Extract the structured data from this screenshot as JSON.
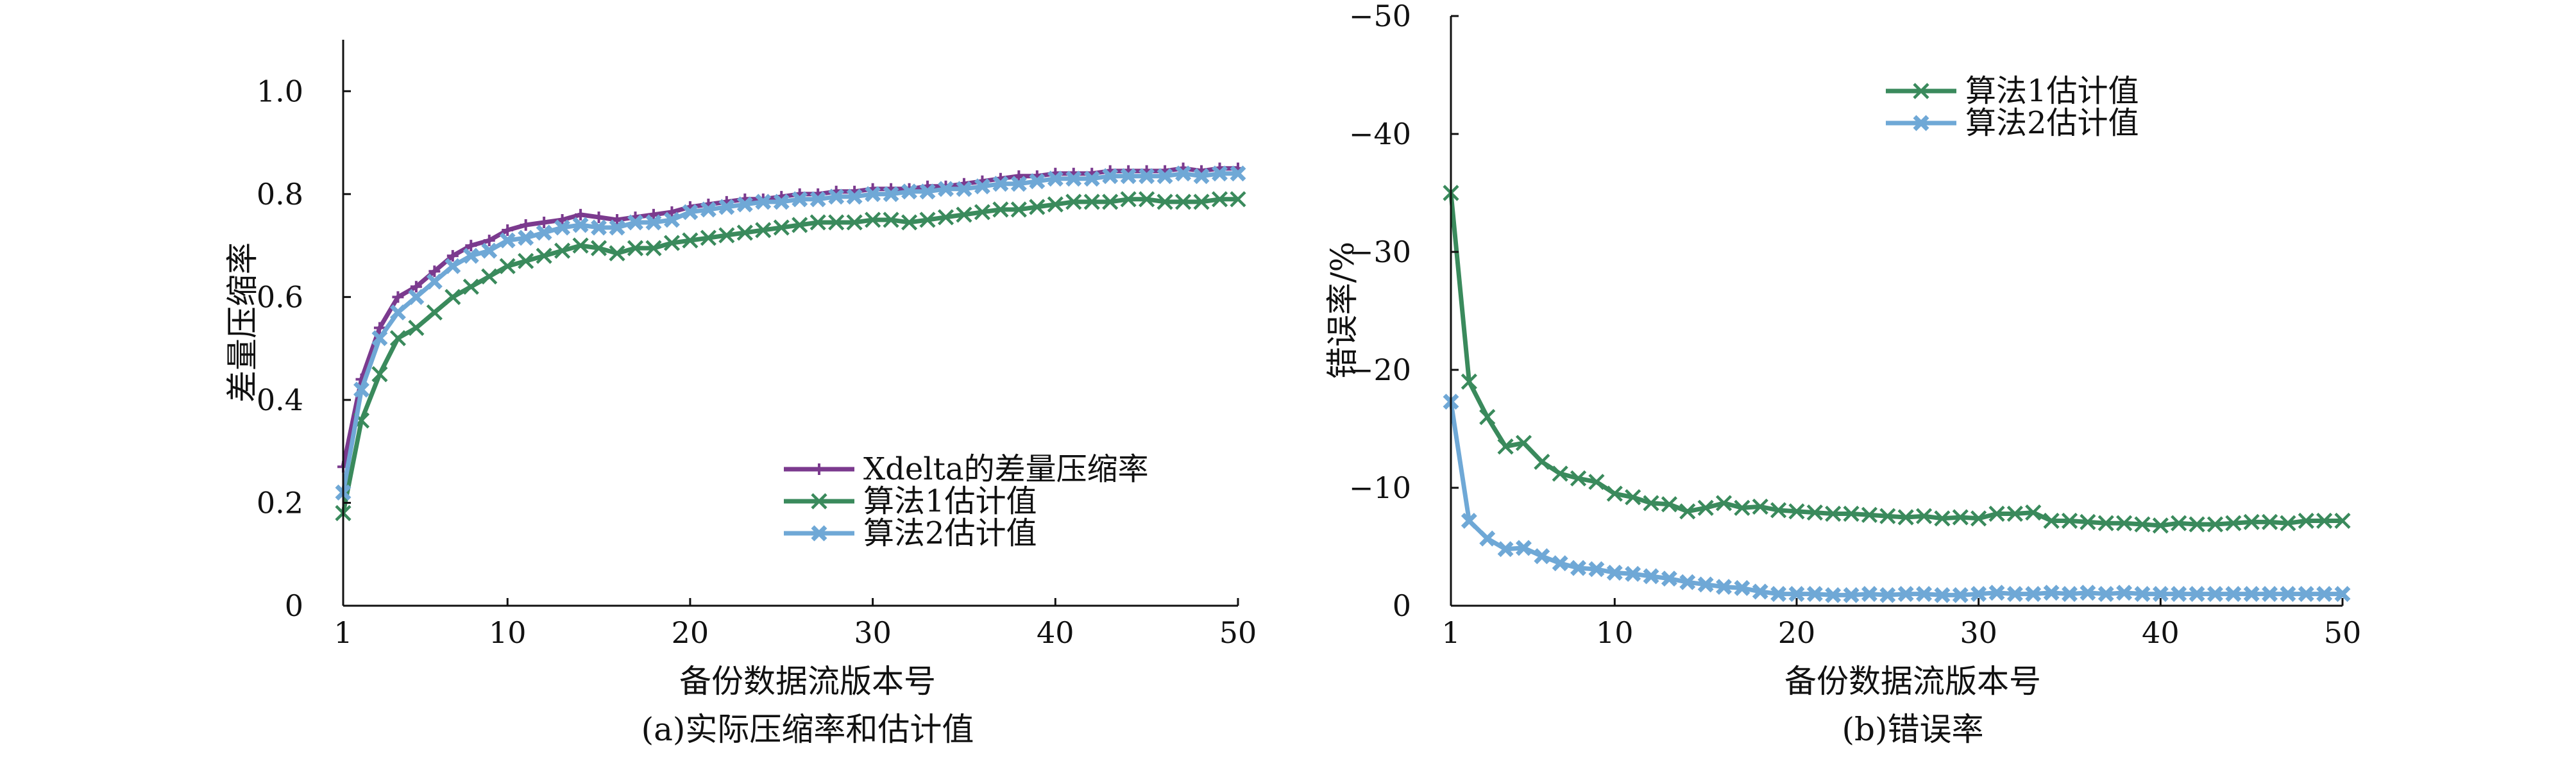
{
  "figure": {
    "panel_a_caption": "(a)实际压缩率和估计值",
    "panel_b_caption": "(b)错误率"
  },
  "chart_data": [
    {
      "type": "line",
      "title": "",
      "caption": "(a)实际压缩率和估计值",
      "xlabel": "备份数据流版本号",
      "ylabel": "差量压缩率",
      "xlim": [
        1,
        50
      ],
      "ylim": [
        0,
        1.1
      ],
      "xticks": [
        1,
        10,
        20,
        30,
        40,
        50
      ],
      "xtick_labels": [
        "1",
        "10",
        "20",
        "30",
        "40",
        "50"
      ],
      "yticks": [
        0,
        0.2,
        0.4,
        0.6,
        0.8,
        1.0
      ],
      "ytick_labels": [
        "0",
        "0.2",
        "0.4",
        "0.6",
        "0.8",
        "1.0"
      ],
      "grid": false,
      "legend_position": "bottom-right",
      "x": [
        1,
        2,
        3,
        4,
        5,
        6,
        7,
        8,
        9,
        10,
        11,
        12,
        13,
        14,
        15,
        16,
        17,
        18,
        19,
        20,
        21,
        22,
        23,
        24,
        25,
        26,
        27,
        28,
        29,
        30,
        31,
        32,
        33,
        34,
        35,
        36,
        37,
        38,
        39,
        40,
        41,
        42,
        43,
        44,
        45,
        46,
        47,
        48,
        49,
        50
      ],
      "series": [
        {
          "name": "Xdelta的差量压缩率",
          "color": "#7b3a8e",
          "marker": "plus",
          "values": [
            0.27,
            0.44,
            0.54,
            0.6,
            0.62,
            0.65,
            0.68,
            0.7,
            0.71,
            0.73,
            0.74,
            0.745,
            0.75,
            0.76,
            0.755,
            0.75,
            0.755,
            0.76,
            0.765,
            0.775,
            0.78,
            0.785,
            0.79,
            0.79,
            0.795,
            0.8,
            0.8,
            0.805,
            0.805,
            0.81,
            0.81,
            0.81,
            0.815,
            0.815,
            0.82,
            0.825,
            0.83,
            0.835,
            0.835,
            0.84,
            0.84,
            0.84,
            0.845,
            0.845,
            0.845,
            0.845,
            0.85,
            0.845,
            0.85,
            0.85
          ]
        },
        {
          "name": "算法1估计值",
          "color": "#3a8a5c",
          "marker": "x",
          "values": [
            0.18,
            0.36,
            0.45,
            0.52,
            0.54,
            0.57,
            0.6,
            0.62,
            0.64,
            0.66,
            0.67,
            0.68,
            0.69,
            0.7,
            0.695,
            0.685,
            0.695,
            0.695,
            0.705,
            0.71,
            0.715,
            0.72,
            0.725,
            0.73,
            0.735,
            0.74,
            0.745,
            0.745,
            0.745,
            0.75,
            0.75,
            0.745,
            0.75,
            0.755,
            0.76,
            0.765,
            0.77,
            0.77,
            0.775,
            0.78,
            0.785,
            0.785,
            0.785,
            0.79,
            0.79,
            0.785,
            0.785,
            0.785,
            0.79,
            0.79
          ]
        },
        {
          "name": "算法2估计值",
          "color": "#6fa8d6",
          "marker": "x-bold",
          "values": [
            0.22,
            0.42,
            0.52,
            0.57,
            0.6,
            0.63,
            0.66,
            0.68,
            0.69,
            0.71,
            0.715,
            0.725,
            0.735,
            0.74,
            0.735,
            0.735,
            0.745,
            0.745,
            0.75,
            0.765,
            0.77,
            0.775,
            0.78,
            0.785,
            0.785,
            0.79,
            0.79,
            0.795,
            0.795,
            0.8,
            0.8,
            0.805,
            0.805,
            0.81,
            0.81,
            0.815,
            0.82,
            0.82,
            0.825,
            0.83,
            0.83,
            0.83,
            0.835,
            0.835,
            0.835,
            0.835,
            0.84,
            0.835,
            0.84,
            0.84
          ]
        }
      ]
    },
    {
      "type": "line",
      "title": "",
      "caption": "(b)错误率",
      "xlabel": "备份数据流版本号",
      "ylabel": "错误率/%",
      "xlim": [
        1,
        50
      ],
      "ylim": [
        0,
        -50
      ],
      "xticks": [
        1,
        10,
        20,
        30,
        40,
        50
      ],
      "xtick_labels": [
        "1",
        "10",
        "20",
        "30",
        "40",
        "50"
      ],
      "yticks": [
        0,
        -10,
        -20,
        -30,
        -40,
        -50
      ],
      "ytick_labels": [
        "0",
        "−10",
        "−20",
        "−30",
        "−40",
        "−50"
      ],
      "grid": false,
      "legend_position": "top-right",
      "x": [
        1,
        2,
        3,
        4,
        5,
        6,
        7,
        8,
        9,
        10,
        11,
        12,
        13,
        14,
        15,
        16,
        17,
        18,
        19,
        20,
        21,
        22,
        23,
        24,
        25,
        26,
        27,
        28,
        29,
        30,
        31,
        32,
        33,
        34,
        35,
        36,
        37,
        38,
        39,
        40,
        41,
        42,
        43,
        44,
        45,
        46,
        47,
        48,
        49,
        50
      ],
      "series": [
        {
          "name": "算法1估计值",
          "color": "#3a8a5c",
          "marker": "x",
          "values": [
            -35,
            -19,
            -16,
            -13.5,
            -13.8,
            -12.2,
            -11.2,
            -10.8,
            -10.5,
            -9.5,
            -9.2,
            -8.7,
            -8.6,
            -8.0,
            -8.3,
            -8.7,
            -8.3,
            -8.4,
            -8.1,
            -8.0,
            -7.9,
            -7.8,
            -7.8,
            -7.7,
            -7.6,
            -7.5,
            -7.6,
            -7.4,
            -7.5,
            -7.4,
            -7.8,
            -7.8,
            -7.9,
            -7.2,
            -7.2,
            -7.1,
            -7.0,
            -7.0,
            -6.9,
            -6.8,
            -7.0,
            -6.9,
            -6.9,
            -7.0,
            -7.1,
            -7.1,
            -7.0,
            -7.2,
            -7.2,
            -7.2
          ]
        },
        {
          "name": "算法2估计值",
          "color": "#6fa8d6",
          "marker": "x-bold",
          "values": [
            -17.3,
            -7.2,
            -5.7,
            -4.8,
            -4.9,
            -4.2,
            -3.6,
            -3.2,
            -3.1,
            -2.8,
            -2.7,
            -2.5,
            -2.3,
            -2.0,
            -1.8,
            -1.6,
            -1.5,
            -1.2,
            -1.0,
            -1.0,
            -1.0,
            -0.9,
            -0.9,
            -1.0,
            -0.9,
            -1.0,
            -1.0,
            -0.9,
            -0.9,
            -1.0,
            -1.1,
            -1.0,
            -1.0,
            -1.1,
            -1.0,
            -1.1,
            -1.0,
            -1.1,
            -1.0,
            -1.0,
            -1.0,
            -1.0,
            -1.0,
            -1.0,
            -1.0,
            -1.0,
            -1.0,
            -1.0,
            -1.0,
            -1.0
          ]
        }
      ]
    }
  ]
}
